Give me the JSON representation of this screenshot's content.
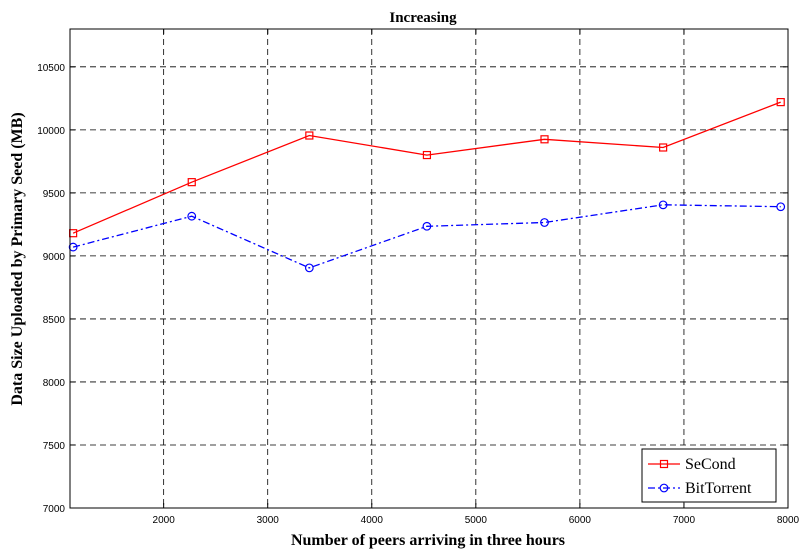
{
  "chart_data": {
    "type": "line",
    "title": "Increasing",
    "xlabel": "Number of peers arriving in three hours",
    "ylabel": "Data Size Uploaded by Primary Seed (MB)",
    "xlim": [
      1100,
      8000
    ],
    "ylim": [
      7000,
      10800
    ],
    "x_ticks": [
      2000,
      3000,
      4000,
      5000,
      6000,
      7000,
      8000
    ],
    "y_ticks": [
      7000,
      7500,
      8000,
      8500,
      9000,
      9500,
      10000,
      10500
    ],
    "grid": true,
    "legend_position": "bottom-right",
    "series": [
      {
        "name": "SeCond",
        "color": "#ff0000",
        "line_style": "solid",
        "marker": "square",
        "x": [
          1130,
          2270,
          3400,
          4530,
          5660,
          6800,
          7930
        ],
        "y": [
          9180,
          9585,
          9955,
          9800,
          9925,
          9860,
          10220
        ]
      },
      {
        "name": "BitTorrent",
        "color": "#0000ff",
        "line_style": "dash-dot",
        "marker": "circle",
        "x": [
          1130,
          2270,
          3400,
          4530,
          5660,
          6800,
          7930
        ],
        "y": [
          9070,
          9315,
          8905,
          9235,
          9265,
          9405,
          9390
        ]
      }
    ]
  }
}
